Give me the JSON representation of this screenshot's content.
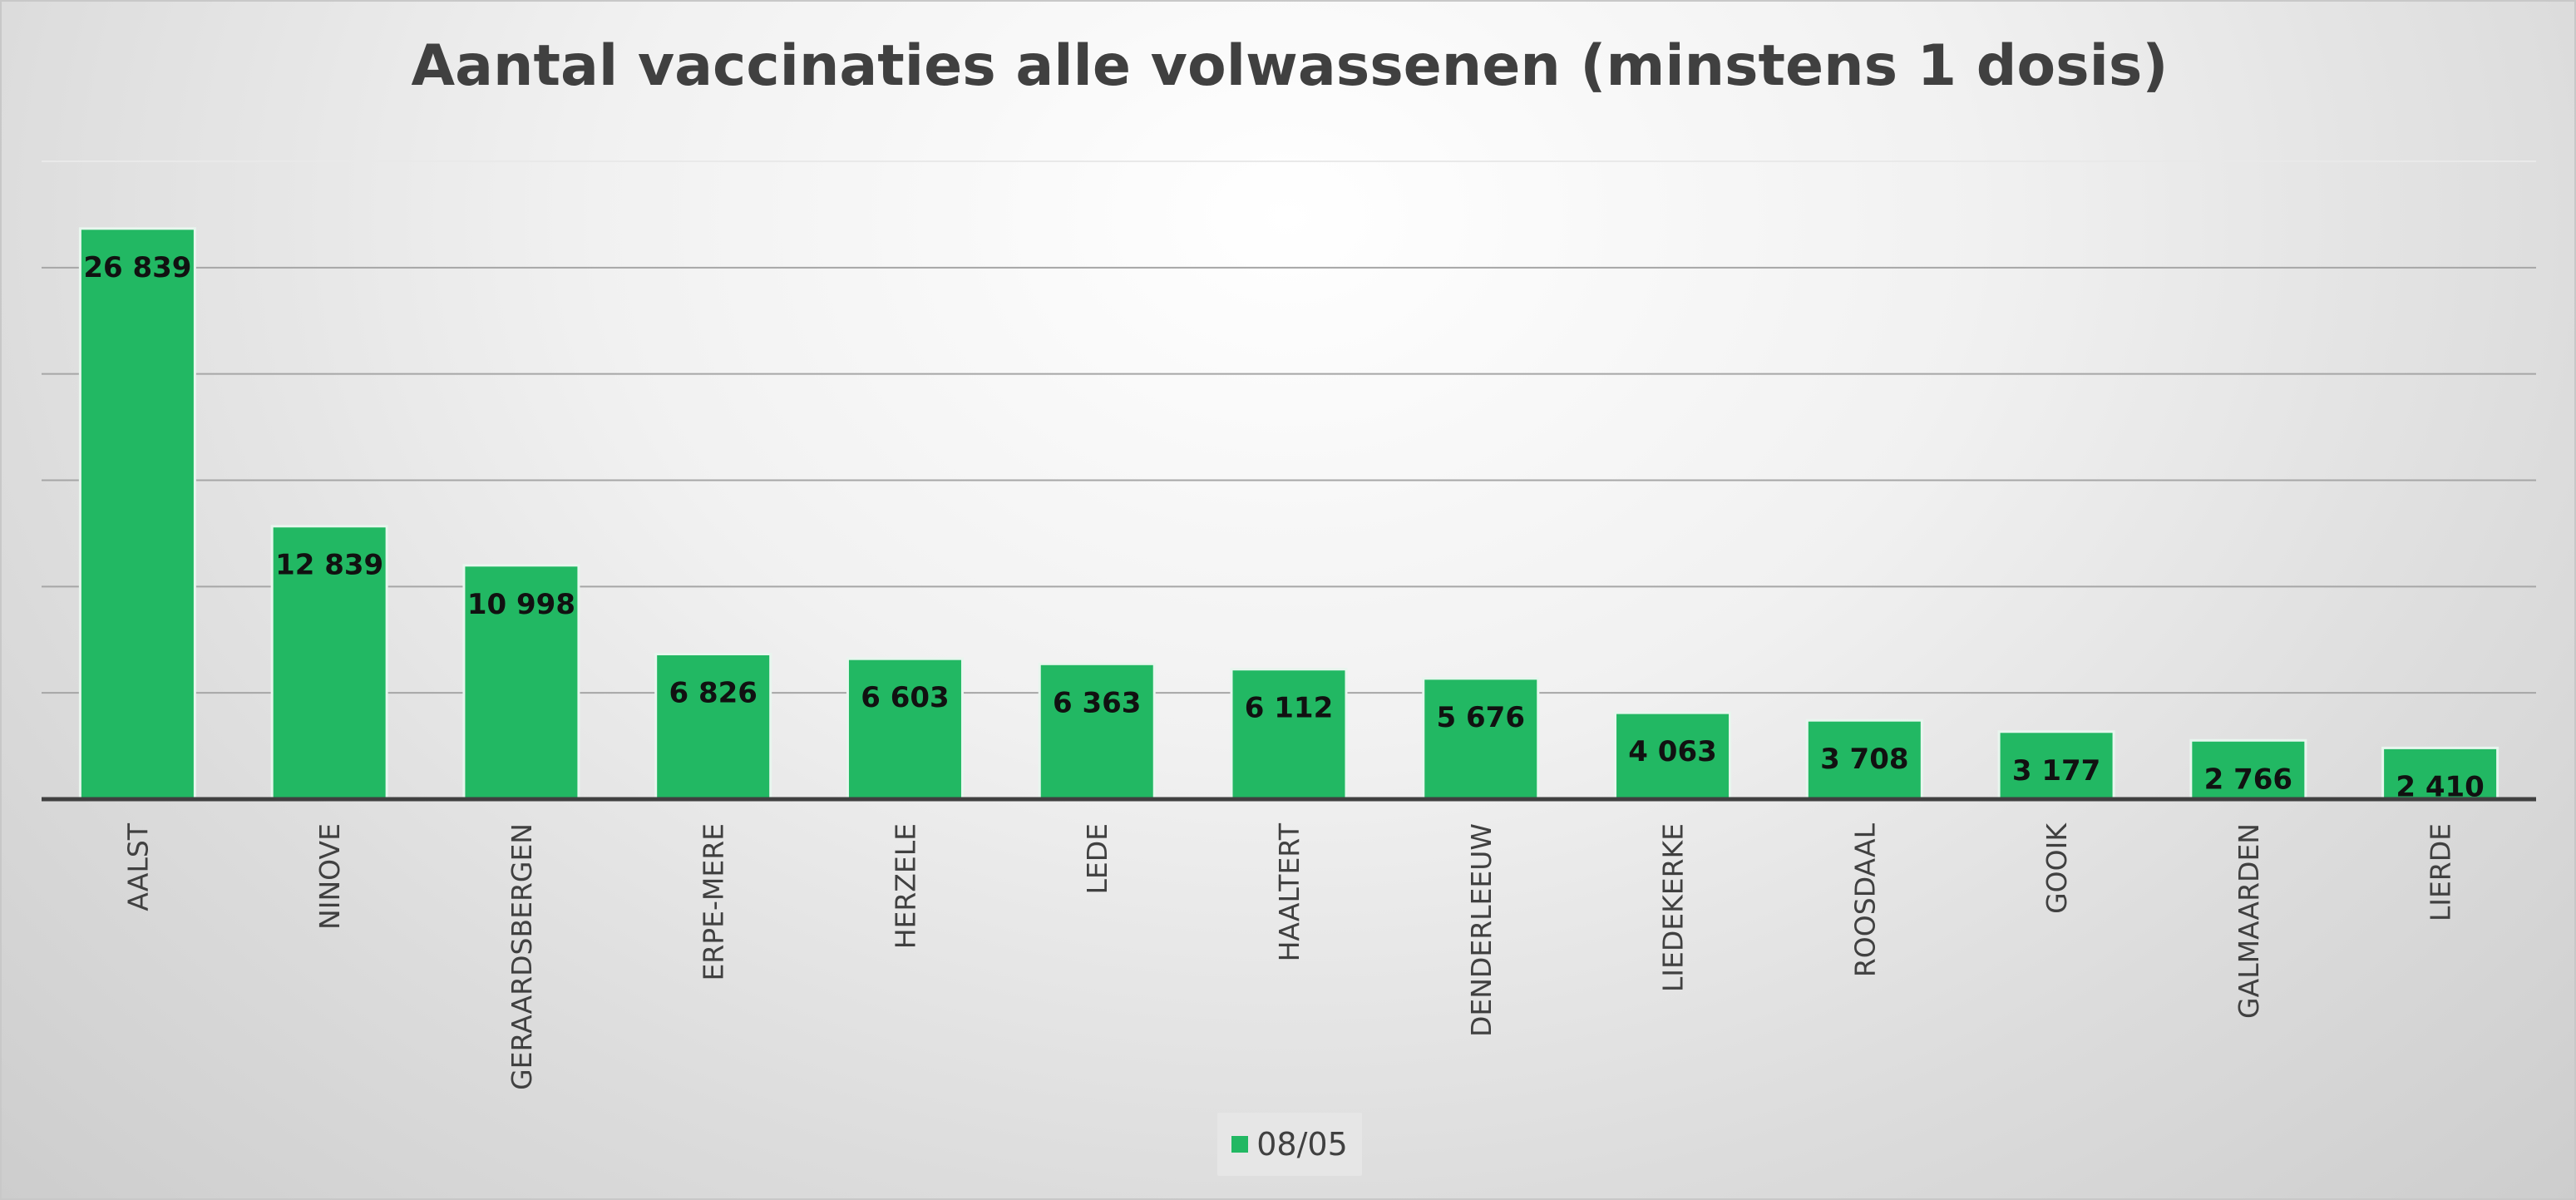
{
  "chart_data": {
    "type": "bar",
    "title": "Aantal vaccinaties alle volwassenen (minstens 1 dosis)",
    "categories": [
      "AALST",
      "NINOVE",
      "GERAARDSBERGEN",
      "ERPE-MERE",
      "HERZELE",
      "LEDE",
      "HAALTERT",
      "DENDERLEEUW",
      "LIEDEKERKE",
      "ROOSDAAL",
      "GOOIK",
      "GALMAARDEN",
      "LIERDE"
    ],
    "series": [
      {
        "name": "08/05",
        "values": [
          26839,
          12839,
          10998,
          6826,
          6603,
          6363,
          6112,
          5676,
          4063,
          3708,
          3177,
          2766,
          2410
        ],
        "labels": [
          "26 839",
          "12 839",
          "10 998",
          "6 826",
          "6 603",
          "6 363",
          "6 112",
          "5 676",
          "4 063",
          "3 708",
          "3 177",
          "2 766",
          "2 410"
        ]
      }
    ],
    "ylim": [
      0,
      30000
    ],
    "grid": true,
    "legend": "bottom",
    "colors": {
      "bar": "#22b863",
      "bar_stroke": "#e8f6ee",
      "grid": "#a6a6a6",
      "axis": "#404040",
      "title": "#404040",
      "label": "#111111",
      "category": "#404040"
    }
  }
}
